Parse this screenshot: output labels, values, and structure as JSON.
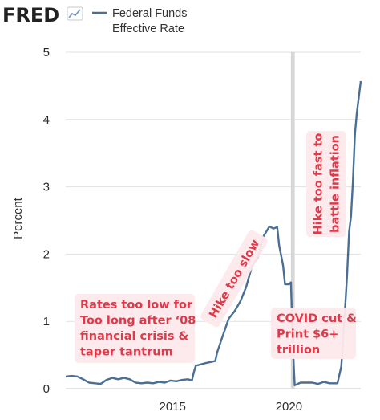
{
  "logo": {
    "text": "FRED"
  },
  "chart_data": {
    "type": "line",
    "title": "",
    "xlabel": "",
    "ylabel": "Percent",
    "ylim": [
      0,
      5
    ],
    "xlim": [
      "2010-06-01",
      "2023-02-01"
    ],
    "grid": "horizontal",
    "legend": "top",
    "recession_shading": [
      {
        "start": "2020-02-01",
        "end": "2020-04-01"
      }
    ],
    "y_ticks": [
      "0",
      "1",
      "2",
      "3",
      "4",
      "5"
    ],
    "x_ticks": [
      {
        "label": "2015",
        "date": "2015-01-01"
      },
      {
        "label": "2020",
        "date": "2020-01-01"
      }
    ],
    "series": [
      {
        "name": "Federal Funds Effective Rate",
        "color": "#4a6e94",
        "points": [
          [
            "2010-06-01",
            0.18
          ],
          [
            "2010-09-01",
            0.19
          ],
          [
            "2010-12-01",
            0.18
          ],
          [
            "2011-03-01",
            0.14
          ],
          [
            "2011-06-01",
            0.09
          ],
          [
            "2011-09-01",
            0.08
          ],
          [
            "2011-12-01",
            0.07
          ],
          [
            "2012-03-01",
            0.13
          ],
          [
            "2012-06-01",
            0.16
          ],
          [
            "2012-09-01",
            0.14
          ],
          [
            "2012-12-01",
            0.16
          ],
          [
            "2013-03-01",
            0.14
          ],
          [
            "2013-06-01",
            0.09
          ],
          [
            "2013-09-01",
            0.08
          ],
          [
            "2013-12-01",
            0.09
          ],
          [
            "2014-03-01",
            0.08
          ],
          [
            "2014-06-01",
            0.1
          ],
          [
            "2014-09-01",
            0.09
          ],
          [
            "2014-12-01",
            0.12
          ],
          [
            "2015-03-01",
            0.11
          ],
          [
            "2015-06-01",
            0.13
          ],
          [
            "2015-09-01",
            0.14
          ],
          [
            "2015-11-01",
            0.12
          ],
          [
            "2015-12-01",
            0.24
          ],
          [
            "2016-01-01",
            0.34
          ],
          [
            "2016-06-01",
            0.38
          ],
          [
            "2016-11-01",
            0.41
          ],
          [
            "2016-12-01",
            0.54
          ],
          [
            "2017-03-01",
            0.79
          ],
          [
            "2017-06-01",
            1.04
          ],
          [
            "2017-09-01",
            1.15
          ],
          [
            "2017-12-01",
            1.3
          ],
          [
            "2018-03-01",
            1.51
          ],
          [
            "2018-06-01",
            1.82
          ],
          [
            "2018-09-01",
            1.95
          ],
          [
            "2018-12-01",
            2.27
          ],
          [
            "2019-03-01",
            2.41
          ],
          [
            "2019-05-01",
            2.38
          ],
          [
            "2019-07-01",
            2.4
          ],
          [
            "2019-08-01",
            2.13
          ],
          [
            "2019-10-01",
            1.83
          ],
          [
            "2019-11-01",
            1.55
          ],
          [
            "2020-01-01",
            1.55
          ],
          [
            "2020-02-01",
            1.58
          ],
          [
            "2020-03-01",
            0.65
          ],
          [
            "2020-04-01",
            0.05
          ],
          [
            "2020-07-01",
            0.09
          ],
          [
            "2020-10-01",
            0.09
          ],
          [
            "2021-01-01",
            0.09
          ],
          [
            "2021-04-01",
            0.07
          ],
          [
            "2021-07-01",
            0.1
          ],
          [
            "2021-10-01",
            0.08
          ],
          [
            "2022-02-01",
            0.08
          ],
          [
            "2022-03-01",
            0.2
          ],
          [
            "2022-04-01",
            0.33
          ],
          [
            "2022-05-01",
            0.77
          ],
          [
            "2022-06-01",
            1.21
          ],
          [
            "2022-07-01",
            1.68
          ],
          [
            "2022-08-01",
            2.33
          ],
          [
            "2022-09-01",
            2.56
          ],
          [
            "2022-10-01",
            3.08
          ],
          [
            "2022-11-01",
            3.78
          ],
          [
            "2022-12-01",
            4.1
          ],
          [
            "2023-01-01",
            4.33
          ],
          [
            "2023-02-01",
            4.57
          ]
        ]
      }
    ],
    "annotations": [
      {
        "lines": [
          "Rates too low for",
          "Too long after ‘08",
          "financial crisis &",
          "taper tantrum"
        ],
        "anchor": "bottom-left",
        "rotation": 0
      },
      {
        "lines": [
          "Hike too slow"
        ],
        "anchor": "lower-middle",
        "rotation": -60
      },
      {
        "lines": [
          "COVID cut &",
          "Print $6+",
          "trillion"
        ],
        "anchor": "bottom-right",
        "rotation": 0
      },
      {
        "lines": [
          "Hike too fast to",
          "battle inflation"
        ],
        "anchor": "top-right",
        "rotation": -90
      }
    ]
  }
}
